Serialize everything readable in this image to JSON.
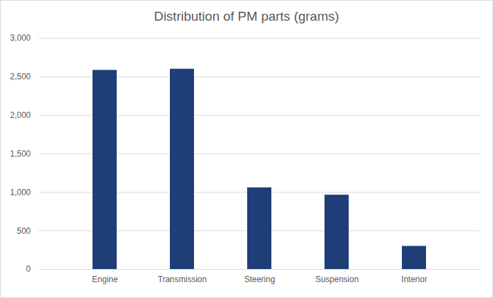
{
  "chart_data": {
    "type": "bar",
    "title": "Distribution of PM parts (grams)",
    "categories": [
      "Engine",
      "Transmission",
      "Steering",
      "Suspension",
      "Interior"
    ],
    "values": [
      2585,
      2600,
      1060,
      965,
      300
    ],
    "color": "#1f3e78",
    "ylim": [
      0,
      3000
    ],
    "yticks": [
      0,
      500,
      1000,
      1500,
      2000,
      2500,
      3000
    ],
    "grid": true
  }
}
